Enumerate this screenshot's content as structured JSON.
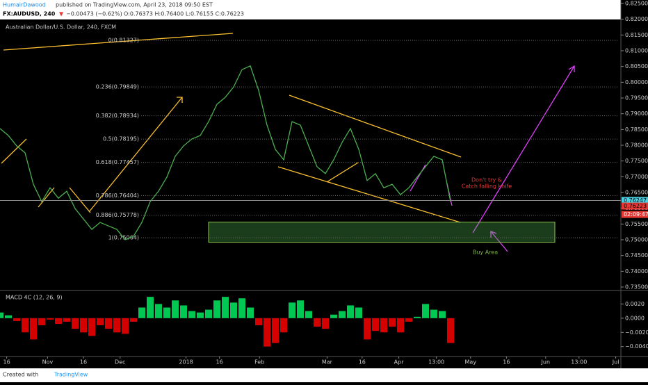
{
  "header": {
    "author": "HumairDawood",
    "published": " published on TradingView.com, April 23, 2018 09:50 EST",
    "symbol": "FX:AUDUSD, 240",
    "arrow": "▼",
    "change": "−0.00473 (−0.62%)",
    "ohlc": "O:0.76373 H:0.76400 L:0.76155 C:0.76223"
  },
  "footer": {
    "created": "Created with",
    "brand": "TradingView"
  },
  "chart_data": {
    "type": "line",
    "title": "Australian Dollar/U.S. Dollar, 240, FXCM",
    "color": "#4caf50",
    "x": [
      0,
      1,
      2,
      3,
      4,
      5,
      6,
      7,
      8,
      9,
      10,
      11,
      12,
      13,
      14,
      15,
      16,
      17,
      18,
      19,
      20,
      21,
      22,
      23,
      24,
      25,
      26,
      27,
      28,
      29,
      30,
      31,
      32,
      33,
      34,
      35,
      36,
      37,
      38,
      39,
      40,
      41,
      42,
      43,
      44,
      45,
      46,
      47,
      48,
      49,
      50,
      51,
      52,
      53,
      54
    ],
    "values": [
      0.7853,
      0.7831,
      0.7798,
      0.7776,
      0.7676,
      0.7621,
      0.7665,
      0.7632,
      0.7654,
      0.7599,
      0.7566,
      0.7533,
      0.7555,
      0.7544,
      0.7533,
      0.75,
      0.7511,
      0.7555,
      0.7621,
      0.7654,
      0.7699,
      0.7765,
      0.7798,
      0.782,
      0.7831,
      0.7875,
      0.793,
      0.7952,
      0.7985,
      0.804,
      0.8052,
      0.7974,
      0.7864,
      0.7787,
      0.7754,
      0.7875,
      0.7864,
      0.7798,
      0.7732,
      0.771,
      0.7754,
      0.7809,
      0.7853,
      0.7787,
      0.7688,
      0.771,
      0.7665,
      0.7676,
      0.7643,
      0.7665,
      0.7699,
      0.7732,
      0.7765,
      0.7754,
      0.7621
    ],
    "xlim": [
      0,
      74
    ],
    "ylim": [
      0.7339,
      0.8261
    ],
    "xticks": [
      {
        "value": 0.8,
        "label": "16"
      },
      {
        "value": 5.7,
        "label": "Nov"
      },
      {
        "value": 10,
        "label": "16"
      },
      {
        "value": 14.4,
        "label": "Dec"
      },
      {
        "value": 22.3,
        "label": "2018"
      },
      {
        "value": 26.3,
        "label": "16"
      },
      {
        "value": 31.1,
        "label": "Feb"
      },
      {
        "value": 39.2,
        "label": "Mar"
      },
      {
        "value": 43.4,
        "label": "16"
      },
      {
        "value": 47.8,
        "label": "Apr"
      },
      {
        "value": 52.3,
        "label": "13:00"
      },
      {
        "value": 56.4,
        "label": "May"
      },
      {
        "value": 60.7,
        "label": "16"
      },
      {
        "value": 65.4,
        "label": "Jun"
      },
      {
        "value": 69.4,
        "label": "13:00"
      },
      {
        "value": 73.8,
        "label": "Jul"
      }
    ],
    "yticks": [
      {
        "value": 0.825,
        "label": "0.82500"
      },
      {
        "value": 0.82,
        "label": "0.82000"
      },
      {
        "value": 0.815,
        "label": "0.81500"
      },
      {
        "value": 0.81,
        "label": "0.81000"
      },
      {
        "value": 0.805,
        "label": "0.80500"
      },
      {
        "value": 0.8,
        "label": "0.80000"
      },
      {
        "value": 0.795,
        "label": "0.79500"
      },
      {
        "value": 0.79,
        "label": "0.79000"
      },
      {
        "value": 0.785,
        "label": "0.78500"
      },
      {
        "value": 0.78,
        "label": "0.78000"
      },
      {
        "value": 0.775,
        "label": "0.77500"
      },
      {
        "value": 0.77,
        "label": "0.77000"
      },
      {
        "value": 0.765,
        "label": "0.76500"
      },
      {
        "value": 0.76,
        "label": "0.76000"
      },
      {
        "value": 0.755,
        "label": "0.75500"
      },
      {
        "value": 0.75,
        "label": "0.75000"
      },
      {
        "value": 0.745,
        "label": "0.74500"
      },
      {
        "value": 0.74,
        "label": "0.74000"
      },
      {
        "value": 0.735,
        "label": "0.73500"
      }
    ],
    "levels": [
      {
        "label": "0(0.81327)",
        "value": 0.81327
      },
      {
        "label": "0.236(0.79849)",
        "value": 0.79849
      },
      {
        "label": "0.382(0.78934)",
        "value": 0.78934
      },
      {
        "label": "0.5(0.78195)",
        "value": 0.78195
      },
      {
        "label": "0.618(0.77457)",
        "value": 0.77457
      },
      {
        "label": "0.786(0.76404)",
        "value": 0.76404
      },
      {
        "label": "0.886(0.75778)",
        "value": 0.75778
      },
      {
        "label": "1(0.75064)",
        "value": 0.75064
      }
    ],
    "price_tags": [
      {
        "label": "0.76247",
        "value": 0.76247,
        "color": "#4dd0e1"
      },
      {
        "label": "0.76223",
        "value": 0.76223,
        "color": "#e53935"
      }
    ],
    "countdown": "02:09:47",
    "zone": {
      "x": [
        25,
        66.5
      ],
      "y": [
        0.7492,
        0.7556
      ],
      "label": "Buy Area"
    },
    "annotation": [
      "Don't try &",
      "Catch falling knife"
    ],
    "macd": {
      "title": "MACD 4C (12, 26, 9)",
      "up_color": "#00c853",
      "down_color": "#d50000",
      "ylim": [
        -0.0054,
        0.0039
      ],
      "yticks": [
        {
          "value": 0.002,
          "label": "0.0020"
        },
        {
          "value": 0,
          "label": "0.0000"
        },
        {
          "value": -0.002,
          "label": "−0.0020"
        },
        {
          "value": -0.004,
          "label": "−0.0040"
        }
      ],
      "values": [
        0.0008,
        0.0004,
        -0.0004,
        -0.002,
        -0.003,
        -0.001,
        -0.0002,
        -0.0008,
        -0.0005,
        -0.0015,
        -0.002,
        -0.0025,
        -0.001,
        -0.0015,
        -0.002,
        -0.0022,
        -0.0005,
        0.0015,
        0.003,
        0.002,
        0.0015,
        0.0025,
        0.0018,
        0.001,
        0.0008,
        0.0012,
        0.0025,
        0.003,
        0.0022,
        0.0028,
        0.0015,
        -0.001,
        -0.004,
        -0.0035,
        -0.002,
        0.0022,
        0.0025,
        0.001,
        -0.0012,
        -0.0015,
        0.0005,
        0.001,
        0.0018,
        0.0015,
        -0.003,
        -0.0018,
        -0.002,
        -0.0012,
        -0.002,
        -0.0005,
        0.0002,
        0.002,
        0.0012,
        0.001,
        -0.0035
      ]
    }
  }
}
